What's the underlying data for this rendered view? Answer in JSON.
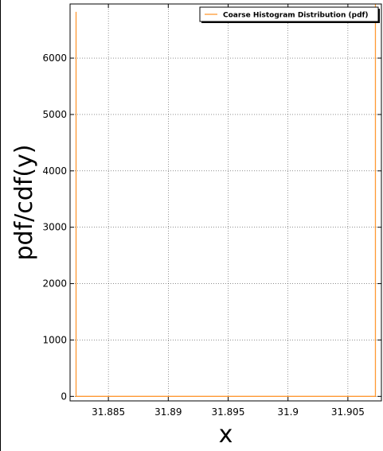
{
  "chart_data": {
    "type": "line",
    "xlabel": "x",
    "ylabel": "pdf/cdf(y)",
    "title": "",
    "xlim": [
      31.8818,
      31.9078
    ],
    "ylim": [
      -80,
      6960
    ],
    "x_ticks": [
      31.885,
      31.89,
      31.895,
      31.9,
      31.905
    ],
    "x_tick_labels": [
      "31.885",
      "31.89",
      "31.895",
      "31.9",
      "31.905"
    ],
    "y_ticks": [
      0,
      1000,
      2000,
      3000,
      4000,
      5000,
      6000
    ],
    "y_tick_labels": [
      "0",
      "1000",
      "2000",
      "3000",
      "4000",
      "5000",
      "6000"
    ],
    "grid": true,
    "legend_position": "top-right",
    "series": [
      {
        "name": "Coarse Histogram Distribution (pdf)",
        "color": "#ff9933",
        "x": [
          31.8823,
          31.8823,
          31.8824,
          31.9073,
          31.9073
        ],
        "y": [
          6820,
          0,
          0,
          0,
          6960
        ]
      }
    ]
  }
}
